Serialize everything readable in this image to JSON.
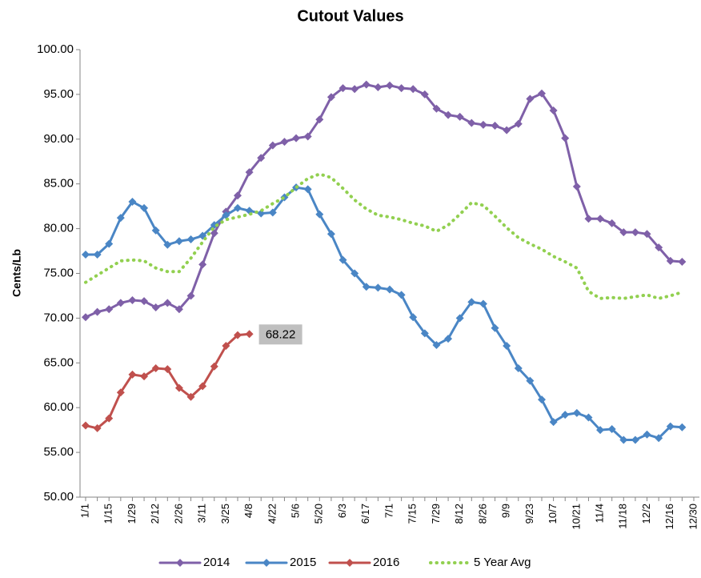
{
  "chart_data": {
    "type": "line",
    "title": "Cutout Values",
    "ylabel": "Cents/Lb",
    "categories": [
      "1/1",
      null,
      "1/15",
      null,
      "1/29",
      null,
      "2/12",
      null,
      "2/26",
      null,
      "3/11",
      null,
      "3/25",
      null,
      "4/8",
      null,
      "4/22",
      null,
      "5/6",
      null,
      "5/20",
      null,
      "6/3",
      null,
      "6/17",
      null,
      "7/1",
      null,
      "7/15",
      null,
      "7/29",
      null,
      "8/12",
      null,
      "8/26",
      null,
      "9/9",
      null,
      "9/23",
      null,
      "10/7",
      null,
      "10/21",
      null,
      "11/4",
      null,
      "11/18",
      null,
      "12/2",
      null,
      "12/16",
      null,
      "12/30"
    ],
    "ylim": [
      50,
      100
    ],
    "yticks": [
      {
        "value": 50,
        "label": "50.00"
      },
      {
        "value": 55,
        "label": "55.00"
      },
      {
        "value": 60,
        "label": "60.00"
      },
      {
        "value": 65,
        "label": "65.00"
      },
      {
        "value": 70,
        "label": "70.00"
      },
      {
        "value": 75,
        "label": "75.00"
      },
      {
        "value": 80,
        "label": "80.00"
      },
      {
        "value": 85,
        "label": "85.00"
      },
      {
        "value": 90,
        "label": "90.00"
      },
      {
        "value": 95,
        "label": "95.00"
      },
      {
        "value": 100,
        "label": "100.00"
      }
    ],
    "grid": false,
    "legend": "bottom",
    "series": [
      {
        "name": "2014",
        "color": "#7f60a8",
        "style": "marker",
        "values": [
          70.1,
          70.7,
          71.0,
          71.7,
          72.0,
          71.9,
          71.2,
          71.7,
          71.0,
          72.5,
          76.0,
          79.5,
          81.9,
          83.7,
          86.3,
          87.9,
          89.3,
          89.7,
          90.1,
          90.3,
          92.2,
          94.7,
          95.7,
          95.6,
          96.1,
          95.8,
          96.0,
          95.7,
          95.6,
          95.0,
          93.4,
          92.7,
          92.5,
          91.8,
          91.6,
          91.5,
          91.0,
          91.7,
          94.5,
          95.1,
          93.2,
          90.1,
          84.7,
          81.1,
          81.1,
          80.6,
          79.6,
          79.6,
          79.4,
          77.9,
          76.4,
          76.3,
          null
        ]
      },
      {
        "name": "2015",
        "color": "#4a86c5",
        "style": "marker",
        "values": [
          77.1,
          77.1,
          78.3,
          81.2,
          83.0,
          82.3,
          79.8,
          78.2,
          78.6,
          78.8,
          79.2,
          80.4,
          81.5,
          82.3,
          82.0,
          81.7,
          81.8,
          83.5,
          84.6,
          84.4,
          81.6,
          79.4,
          76.5,
          75.0,
          73.5,
          73.4,
          73.2,
          72.6,
          70.1,
          68.3,
          67.0,
          67.7,
          70.0,
          71.8,
          71.6,
          68.9,
          66.9,
          64.4,
          63.0,
          60.9,
          58.4,
          59.2,
          59.4,
          58.9,
          57.5,
          57.6,
          56.4,
          56.4,
          57.0,
          56.6,
          57.9,
          57.8,
          null
        ]
      },
      {
        "name": "2016",
        "color": "#c0504d",
        "style": "marker",
        "values": [
          58.0,
          57.7,
          58.8,
          61.7,
          63.7,
          63.5,
          64.4,
          64.3,
          62.2,
          61.2,
          62.4,
          64.6,
          66.9,
          68.1,
          68.22,
          null,
          null,
          null,
          null,
          null,
          null,
          null,
          null,
          null,
          null,
          null,
          null,
          null,
          null,
          null,
          null,
          null,
          null,
          null,
          null,
          null,
          null,
          null,
          null,
          null,
          null,
          null,
          null,
          null,
          null,
          null,
          null,
          null,
          null,
          null,
          null,
          null,
          null
        ],
        "value_labels": [
          null,
          null,
          null,
          null,
          null,
          null,
          null,
          null,
          null,
          null,
          null,
          null,
          null,
          null,
          "68.22",
          null,
          null,
          null,
          null,
          null,
          null,
          null,
          null,
          null,
          null,
          null,
          null,
          null,
          null,
          null,
          null,
          null,
          null,
          null,
          null,
          null,
          null,
          null,
          null,
          null,
          null,
          null,
          null,
          null,
          null,
          null,
          null,
          null,
          null,
          null,
          null,
          null,
          null
        ]
      },
      {
        "name": "5 Year Avg",
        "color": "#92d050",
        "style": "dotted",
        "values": [
          74.0,
          74.8,
          75.6,
          76.4,
          76.5,
          76.4,
          75.6,
          75.2,
          75.2,
          76.7,
          78.5,
          80.2,
          81.0,
          81.3,
          81.6,
          82.0,
          82.8,
          83.5,
          84.6,
          85.6,
          86.1,
          85.7,
          84.5,
          83.2,
          82.2,
          81.5,
          81.3,
          81.0,
          80.6,
          80.3,
          79.7,
          80.4,
          81.6,
          82.9,
          82.6,
          81.4,
          80.1,
          79.0,
          78.3,
          77.7,
          76.9,
          76.3,
          75.6,
          73.0,
          72.2,
          72.3,
          72.2,
          72.4,
          72.6,
          72.2,
          72.5,
          72.9,
          null
        ]
      }
    ]
  }
}
